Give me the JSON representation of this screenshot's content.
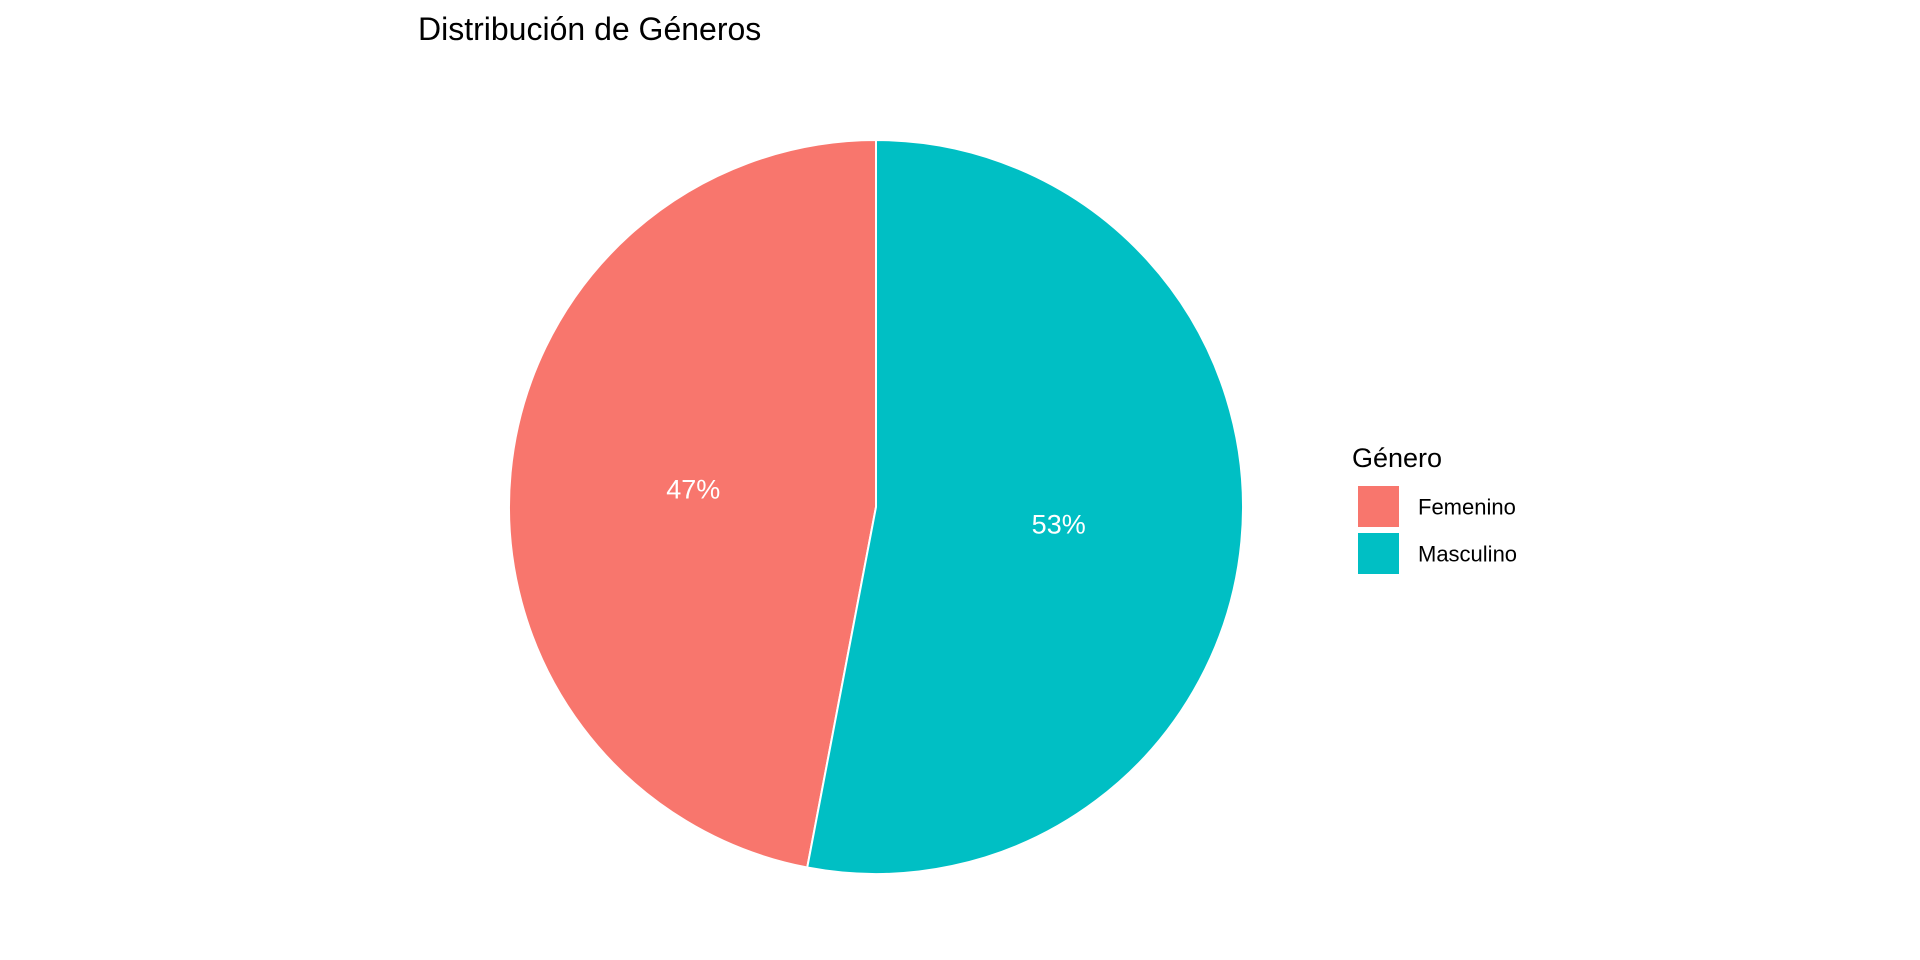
{
  "chart_data": {
    "type": "pie",
    "title": "Distribución de Géneros",
    "legend_title": "Género",
    "legend_position": "right",
    "categories": [
      "Femenino",
      "Masculino"
    ],
    "values": [
      47,
      53
    ],
    "labels": [
      "47%",
      "53%"
    ],
    "colors": [
      "#F8766D",
      "#00BFC4"
    ],
    "label_color": "#ffffff",
    "slice_border_color": "#ffffff",
    "start": "top",
    "direction": "counterclockwise"
  }
}
